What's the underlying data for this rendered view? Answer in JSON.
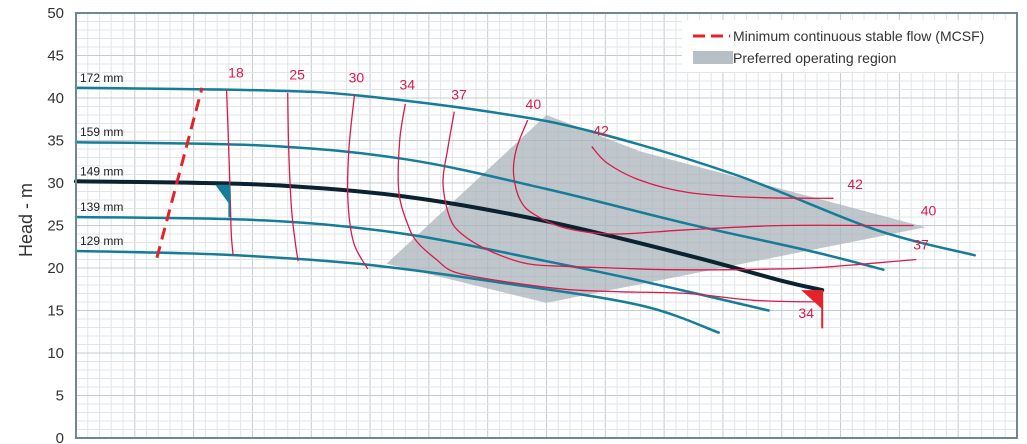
{
  "chart_data": {
    "type": "line",
    "title": "",
    "ylabel": "Head - m",
    "xlabel": "",
    "ylim": [
      0,
      50
    ],
    "xlim": [
      0,
      100
    ],
    "yticks": [
      "0",
      "5",
      "10",
      "15",
      "20",
      "25",
      "30",
      "35",
      "40",
      "45",
      "50"
    ],
    "grid": true,
    "legend_position": "top-right",
    "legend": [
      {
        "label": "Minimum continuous stable flow (MCSF)",
        "style": "dashed",
        "color": "#e4222c"
      },
      {
        "label": "Preferred operating region",
        "style": "area",
        "color": "#b8c0c7"
      }
    ],
    "colors": {
      "curve": "#157d97",
      "selected_curve": "#0b2231",
      "efficiency": "#d81b4a",
      "mcsf": "#e4222c",
      "region": "#a8b1b9",
      "grid_major": "#c3ccd3",
      "grid_minor": "#e1e6ea",
      "frame": "#6d8796"
    },
    "impeller_curves": [
      {
        "label": "172 mm",
        "points": [
          [
            0,
            41.2
          ],
          [
            20,
            40.9
          ],
          [
            30,
            40.3
          ],
          [
            45,
            38.2
          ],
          [
            55,
            36.0
          ],
          [
            70,
            31.0
          ],
          [
            85,
            24.5
          ],
          [
            95.5,
            21.5
          ]
        ]
      },
      {
        "label": "159 mm",
        "points": [
          [
            0,
            34.8
          ],
          [
            20,
            34.4
          ],
          [
            35,
            32.8
          ],
          [
            50,
            29.3
          ],
          [
            65,
            25.2
          ],
          [
            78,
            22.0
          ],
          [
            85.8,
            19.8
          ]
        ]
      },
      {
        "label": "149 mm",
        "points": [
          [
            0,
            30.2
          ],
          [
            20,
            29.8
          ],
          [
            35,
            28.4
          ],
          [
            50,
            25.5
          ],
          [
            65,
            21.5
          ],
          [
            75,
            18.5
          ],
          [
            79.3,
            17.4
          ]
        ]
      },
      {
        "label": "139 mm",
        "points": [
          [
            0,
            26.0
          ],
          [
            20,
            25.6
          ],
          [
            35,
            24.0
          ],
          [
            50,
            20.8
          ],
          [
            60,
            18.5
          ],
          [
            73.6,
            15.0
          ]
        ]
      },
      {
        "label": "129 mm",
        "points": [
          [
            0,
            22.0
          ],
          [
            15,
            21.6
          ],
          [
            30,
            20.5
          ],
          [
            45,
            18.3
          ],
          [
            60,
            15.6
          ],
          [
            68.3,
            12.4
          ]
        ]
      }
    ],
    "selected_curve": "149 mm",
    "marker_149": {
      "label": "149 mm",
      "points": [
        [
          14.8,
          29.8
        ],
        [
          16.3,
          27.5
        ]
      ]
    },
    "efficiency_contours": [
      {
        "label": "18",
        "points": [
          [
            16.0,
            40.9
          ],
          [
            16.2,
            35.0
          ],
          [
            16.4,
            28.0
          ],
          [
            16.5,
            24.0
          ],
          [
            16.7,
            21.5
          ]
        ]
      },
      {
        "label": "25",
        "points": [
          [
            22.5,
            40.6
          ],
          [
            22.6,
            34.0
          ],
          [
            22.9,
            27.0
          ],
          [
            23.3,
            23.0
          ],
          [
            23.6,
            20.8
          ]
        ]
      },
      {
        "label": "30",
        "points": [
          [
            29.6,
            40.4
          ],
          [
            29.0,
            34.0
          ],
          [
            28.9,
            28.0
          ],
          [
            29.5,
            23.0
          ],
          [
            31.0,
            19.9
          ]
        ]
      },
      {
        "label": "34",
        "points": [
          [
            35.0,
            39.3
          ],
          [
            34.4,
            35.0
          ],
          [
            34.3,
            29.0
          ],
          [
            35.3,
            25.0
          ],
          [
            36.3,
            23.0
          ],
          [
            38.3,
            21.0
          ],
          [
            40.3,
            19.5
          ],
          [
            45.0,
            18.5
          ],
          [
            52.0,
            17.5
          ],
          [
            58.0,
            17.2
          ],
          [
            65.0,
            17.0
          ],
          [
            72.0,
            16.2
          ],
          [
            79.0,
            16.0
          ]
        ]
      },
      {
        "label": "37",
        "points": [
          [
            40.2,
            38.4
          ],
          [
            39.5,
            34.0
          ],
          [
            39.0,
            30.0
          ],
          [
            39.7,
            26.0
          ],
          [
            41.0,
            24.0
          ],
          [
            44.0,
            22.0
          ],
          [
            48.0,
            20.5
          ],
          [
            52.0,
            20.2
          ],
          [
            57.0,
            20.0
          ],
          [
            63.0,
            19.8
          ],
          [
            70.0,
            19.8
          ],
          [
            78.0,
            20.0
          ],
          [
            84.0,
            20.5
          ],
          [
            89.3,
            21.0
          ]
        ]
      },
      {
        "label": "40",
        "points": [
          [
            48.0,
            37.4
          ],
          [
            46.8,
            34.0
          ],
          [
            46.5,
            31.0
          ],
          [
            47.2,
            28.0
          ],
          [
            48.7,
            26.3
          ],
          [
            52.0,
            24.7
          ],
          [
            57.0,
            24.0
          ],
          [
            65.0,
            24.5
          ],
          [
            75.0,
            25.0
          ],
          [
            85.0,
            25.0
          ],
          [
            89.0,
            25.0
          ]
        ]
      },
      {
        "label": "42",
        "points": [
          [
            54.8,
            34.3
          ],
          [
            56.5,
            32.3
          ],
          [
            60.0,
            30.3
          ],
          [
            65.0,
            28.9
          ],
          [
            72.0,
            28.3
          ],
          [
            80.5,
            28.2
          ]
        ]
      }
    ],
    "efficiency_label_positions": [
      {
        "label": "18",
        "x": 17.0,
        "y": 42.4
      },
      {
        "label": "25",
        "x": 23.5,
        "y": 42.2
      },
      {
        "label": "30",
        "x": 29.8,
        "y": 41.8
      },
      {
        "label": "34",
        "x": 35.2,
        "y": 41.0
      },
      {
        "label": "37",
        "x": 40.7,
        "y": 39.8
      },
      {
        "label": "40",
        "x": 48.6,
        "y": 38.7
      },
      {
        "label": "42",
        "x": 55.8,
        "y": 35.6
      },
      {
        "label": "42",
        "x": 82.8,
        "y": 29.3
      },
      {
        "label": "40",
        "x": 90.6,
        "y": 26.2
      },
      {
        "label": "37",
        "x": 89.8,
        "y": 22.2
      },
      {
        "label": "34",
        "x": 77.6,
        "y": 14.1
      }
    ],
    "mcsf_line": {
      "points": [
        [
          8.6,
          21.2
        ],
        [
          13.4,
          41.2
        ]
      ]
    },
    "preferred_region": [
      [
        33.0,
        20.5
      ],
      [
        50.0,
        38.0
      ],
      [
        60.0,
        33.7
      ],
      [
        90.3,
        24.8
      ],
      [
        50.0,
        15.9
      ]
    ],
    "duty_point_marker": {
      "points": [
        [
          79.3,
          17.4
        ],
        [
          79.3,
          12.9
        ]
      ]
    }
  }
}
